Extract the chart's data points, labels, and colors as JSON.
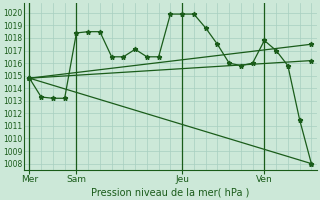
{
  "background_color": "#cce8d8",
  "grid_color": "#a8cfc0",
  "line_color": "#1a5c1a",
  "xlabel": "Pression niveau de la mer( hPa )",
  "ylim": [
    1007.5,
    1020.8
  ],
  "yticks": [
    1008,
    1009,
    1010,
    1011,
    1012,
    1013,
    1014,
    1015,
    1016,
    1017,
    1018,
    1019,
    1020
  ],
  "day_labels": [
    "Mer",
    "Sam",
    "Jeu",
    "Ven"
  ],
  "day_positions": [
    0,
    4,
    13,
    20
  ],
  "xlim": [
    -0.5,
    24.5
  ],
  "num_x_gridlines": 25,
  "vertical_lines": [
    0,
    4,
    13,
    20
  ],
  "series0_x": [
    0,
    1,
    2,
    3,
    4,
    5,
    6,
    7,
    8,
    9,
    10,
    11,
    12,
    13,
    14,
    15,
    16,
    17,
    18,
    19,
    20,
    21,
    22,
    23,
    24
  ],
  "series0_y": [
    1014.8,
    1013.3,
    1013.2,
    1013.2,
    1018.4,
    1018.5,
    1018.5,
    1016.5,
    1016.5,
    1017.1,
    1016.5,
    1016.5,
    1019.9,
    1019.9,
    1019.9,
    1018.8,
    1017.5,
    1016.0,
    1015.8,
    1016.0,
    1017.8,
    1017.0,
    1015.8,
    1011.5,
    1008.0
  ],
  "series1_x": [
    0,
    24
  ],
  "series1_y": [
    1014.8,
    1016.2
  ],
  "series2_x": [
    0,
    24
  ],
  "series2_y": [
    1014.8,
    1017.5
  ],
  "series3_x": [
    0,
    24
  ],
  "series3_y": [
    1014.8,
    1008.0
  ],
  "marker_style": "*",
  "marker_size": 3.5,
  "line_width": 0.9
}
